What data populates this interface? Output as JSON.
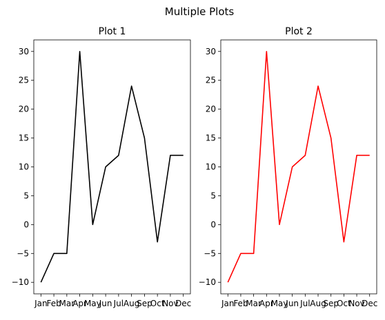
{
  "figure": {
    "suptitle": "Multiple Plots"
  },
  "chart_data": [
    {
      "type": "line",
      "title": "Plot 1",
      "xlabel": "",
      "ylabel": "",
      "categories": [
        "Jan",
        "Feb",
        "Mar",
        "Apr",
        "May",
        "Jun",
        "Jul",
        "Aug",
        "Sep",
        "Oct",
        "Nov",
        "Dec"
      ],
      "series": [
        {
          "values": [
            -10,
            -5,
            -5,
            30,
            0,
            10,
            12,
            24,
            15,
            -3,
            12,
            12
          ],
          "color": "#000000"
        }
      ],
      "ylim": [
        -12,
        32
      ],
      "yticks": [
        -10,
        -5,
        0,
        5,
        10,
        15,
        20,
        25,
        30
      ],
      "grid": false
    },
    {
      "type": "line",
      "title": "Plot 2",
      "xlabel": "",
      "ylabel": "",
      "categories": [
        "Jan",
        "Feb",
        "Mar",
        "Apr",
        "May",
        "Jun",
        "Jul",
        "Aug",
        "Sep",
        "Oct",
        "Nov",
        "Dec"
      ],
      "series": [
        {
          "values": [
            -10,
            -5,
            -5,
            30,
            0,
            10,
            12,
            24,
            15,
            -3,
            12,
            12
          ],
          "color": "#ff0000"
        }
      ],
      "ylim": [
        -12,
        32
      ],
      "yticks": [
        -10,
        -5,
        0,
        5,
        10,
        15,
        20,
        25,
        30
      ],
      "grid": false
    }
  ]
}
